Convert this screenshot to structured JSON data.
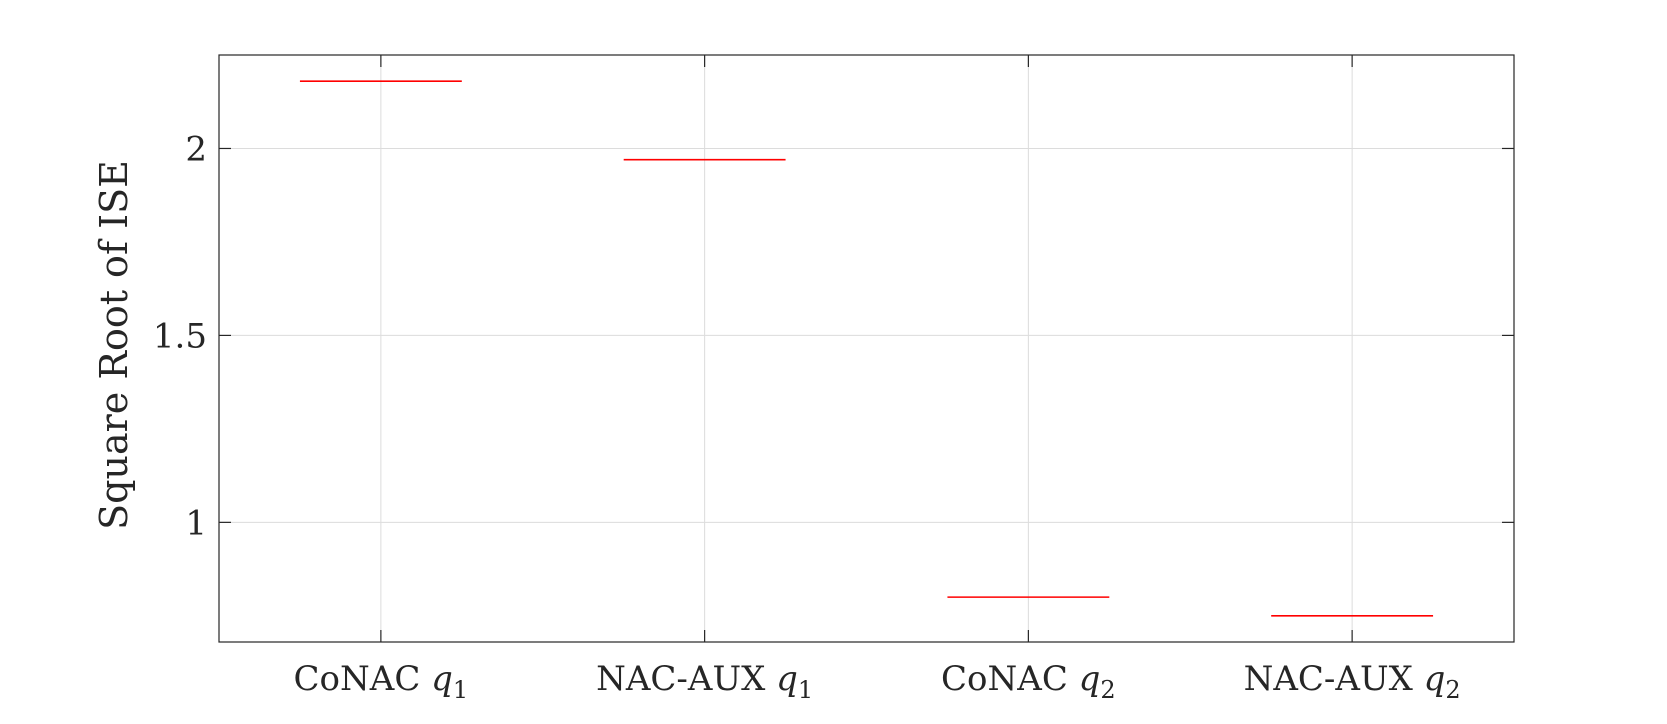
{
  "chart_data": {
    "type": "box",
    "categories": [
      {
        "label": "CoNAC ",
        "var": "q",
        "sub": "1"
      },
      {
        "label": "NAC-AUX ",
        "var": "q",
        "sub": "1"
      },
      {
        "label": "CoNAC ",
        "var": "q",
        "sub": "2"
      },
      {
        "label": "NAC-AUX ",
        "var": "q",
        "sub": "2"
      }
    ],
    "values": [
      2.18,
      1.97,
      0.8,
      0.75
    ],
    "ylabel": "Square Root of ISE",
    "xlabel": "",
    "ylim": [
      0.68,
      2.25
    ],
    "yticks": [
      1,
      1.5,
      2
    ],
    "ytick_labels": [
      "1",
      "1.5",
      "2"
    ],
    "grid": true,
    "colors": {
      "median": "#ff0000",
      "axis": "#262626",
      "grid": "#dcdcdc"
    }
  }
}
